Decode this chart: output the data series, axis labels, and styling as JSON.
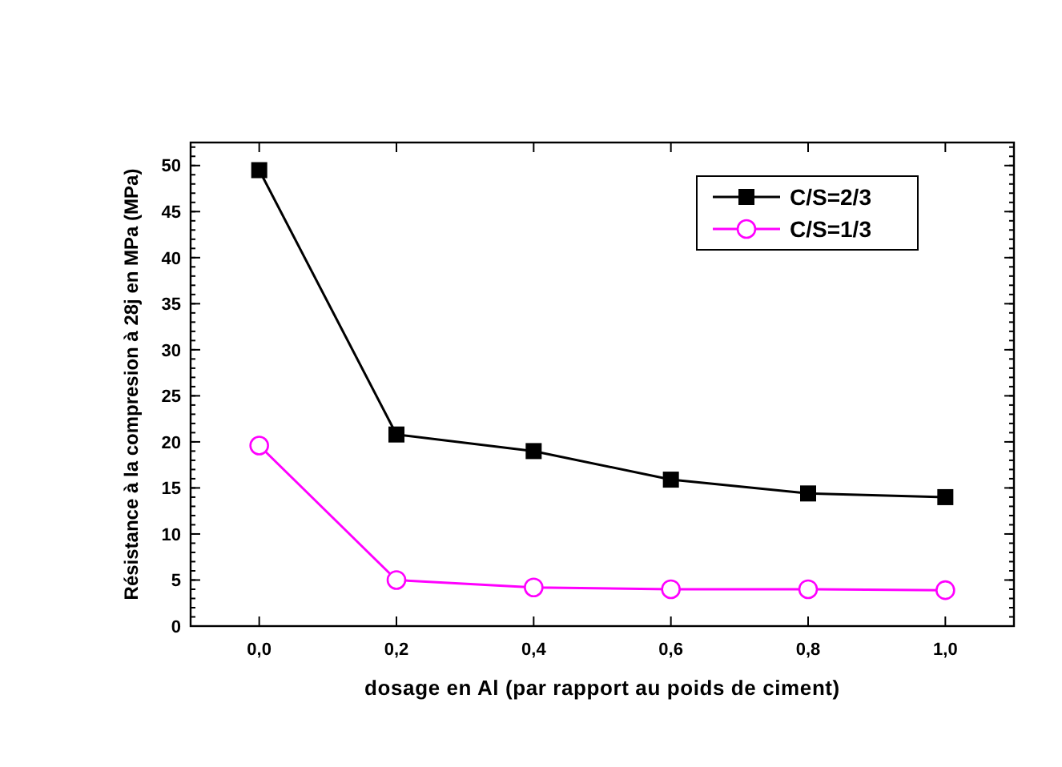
{
  "chart_data": {
    "type": "line",
    "xlabel": "dosage en Al (par rapport au poids de ciment)",
    "ylabel": "Résistance à la compresion à 28j en MPa (MPa)",
    "x": [
      0,
      0.2,
      0.4,
      0.6,
      0.8,
      1.0
    ],
    "series": [
      {
        "name": "C/S=2/3",
        "color": "#000000",
        "marker": "square",
        "values": [
          49.5,
          20.8,
          19.0,
          15.9,
          14.4,
          14.0
        ]
      },
      {
        "name": "C/S=1/3",
        "color": "#ff00ff",
        "marker": "circle",
        "values": [
          19.6,
          5.0,
          4.2,
          4.0,
          4.0,
          3.9
        ]
      }
    ],
    "xlim": [
      -0.1,
      1.1
    ],
    "xticks": [
      {
        "value": 0,
        "label": "0,0"
      },
      {
        "value": 0.2,
        "label": "0,2"
      },
      {
        "value": 0.4,
        "label": "0,4"
      },
      {
        "value": 0.6,
        "label": "0,6"
      },
      {
        "value": 0.8,
        "label": "0,8"
      },
      {
        "value": 1.0,
        "label": "1,0"
      }
    ],
    "ylim": [
      0,
      52.5
    ],
    "yticks": [
      0,
      5,
      10,
      15,
      20,
      25,
      30,
      35,
      40,
      45,
      50
    ],
    "legend": "top right",
    "grid": false
  }
}
